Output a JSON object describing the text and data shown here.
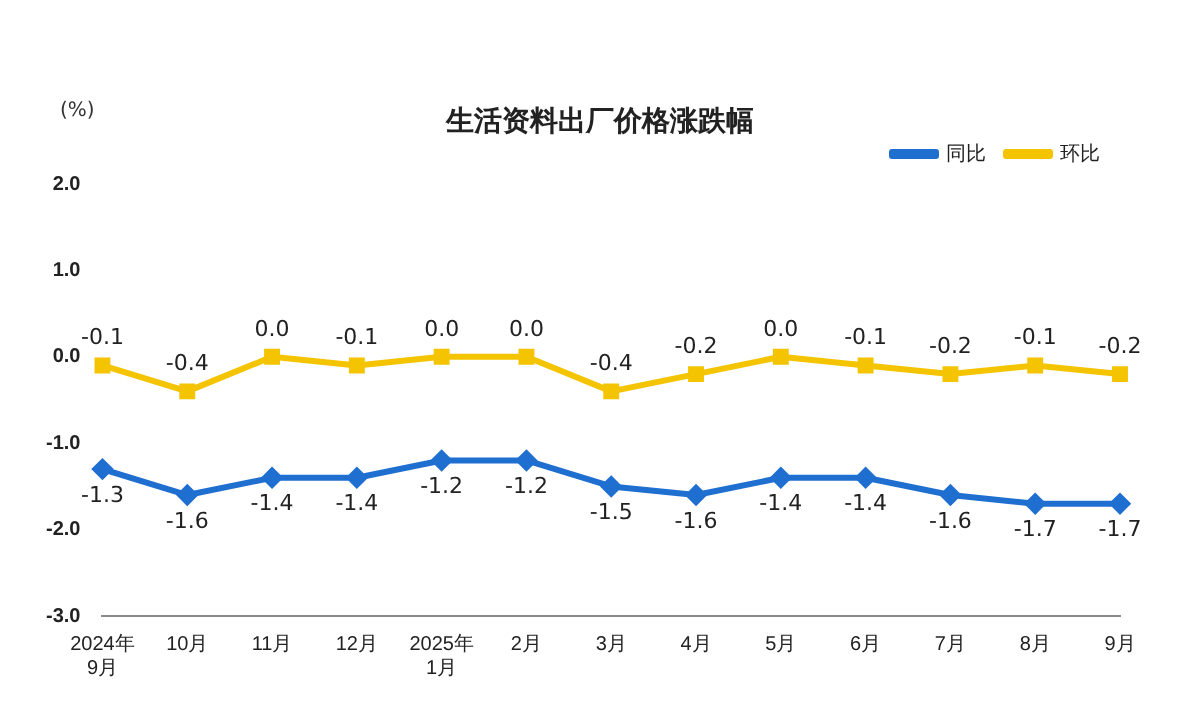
{
  "chart_data": {
    "type": "line",
    "title": "生活资料出厂价格涨跌幅",
    "ylabel": "(%)",
    "categories": [
      "2024年\n9月",
      "10月",
      "11月",
      "12月",
      "2025年\n1月",
      "2月",
      "3月",
      "4月",
      "5月",
      "6月",
      "7月",
      "8月",
      "9月"
    ],
    "series": [
      {
        "name": "同比",
        "color": "#1f6fd1",
        "marker": "diamond",
        "values": [
          -1.3,
          -1.6,
          -1.4,
          -1.4,
          -1.2,
          -1.2,
          -1.5,
          -1.6,
          -1.4,
          -1.4,
          -1.6,
          -1.7,
          -1.7
        ],
        "value_labels": [
          "-1.3",
          "-1.6",
          "-1.4",
          "-1.4",
          "-1.2",
          "-1.2",
          "-1.5",
          "-1.6",
          "-1.4",
          "-1.4",
          "-1.6",
          "-1.7",
          "-1.7"
        ]
      },
      {
        "name": "环比",
        "color": "#f5c400",
        "marker": "square",
        "values": [
          -0.1,
          -0.4,
          0.0,
          -0.1,
          0.0,
          0.0,
          -0.4,
          -0.2,
          0.0,
          -0.1,
          -0.2,
          -0.1,
          -0.2
        ],
        "value_labels": [
          "-0.1",
          "-0.4",
          "0.0",
          "-0.1",
          "0.0",
          "0.0",
          "-0.4",
          "-0.2",
          "0.0",
          "-0.1",
          "-0.2",
          "-0.1",
          "-0.2"
        ]
      }
    ],
    "ylim": [
      -3.0,
      2.0
    ],
    "yticks": [
      {
        "value": 2,
        "label": "2.0"
      },
      {
        "value": 1,
        "label": "1.0"
      },
      {
        "value": 0,
        "label": "0.0"
      },
      {
        "value": -1,
        "label": "-1.0"
      },
      {
        "value": -2,
        "label": "-2.0"
      },
      {
        "value": -3,
        "label": "-3.0"
      }
    ],
    "grid": false,
    "legend": "top right"
  }
}
